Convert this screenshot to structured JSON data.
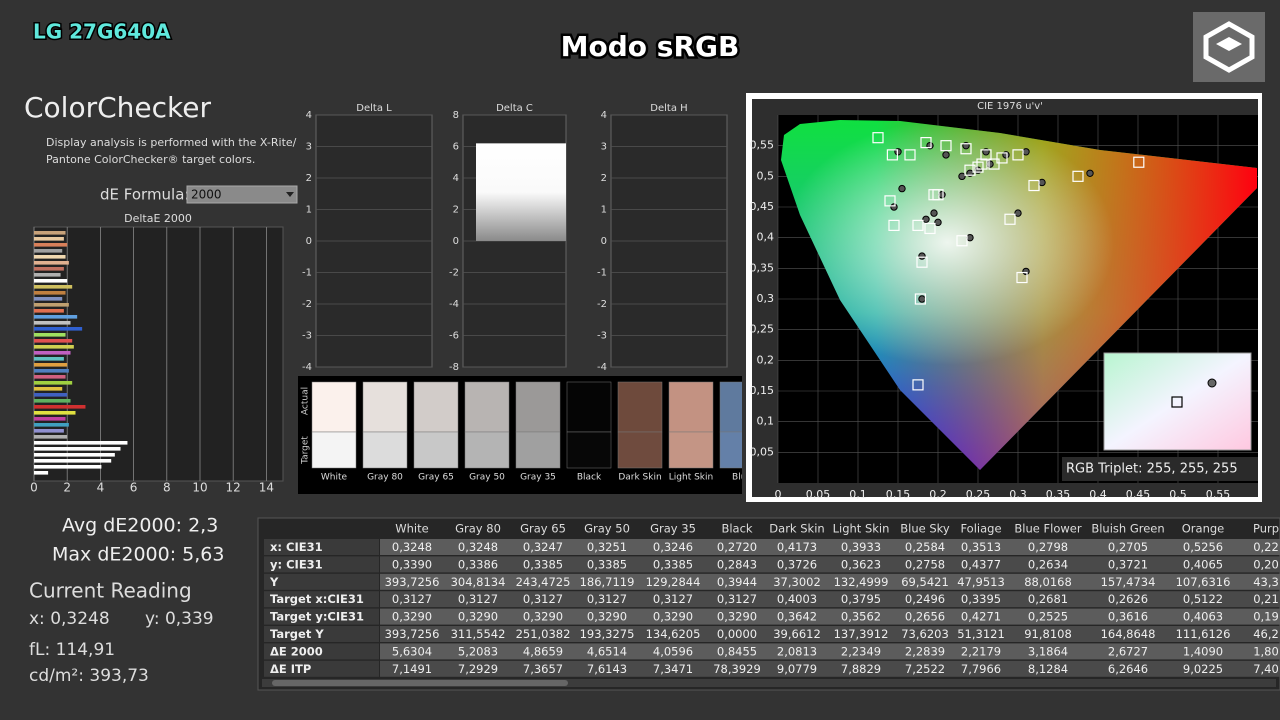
{
  "header": {
    "device": "LG 27G640A",
    "title": "Modo sRGB"
  },
  "panel": {
    "title": "ColorChecker",
    "description_1": "Display analysis is performed with the X-Rite/",
    "description_2": "Pantone ColorChecker® target colors.",
    "formula_label": "dE Formula:",
    "formula": "2000"
  },
  "deltae_chart": {
    "title": "DeltaE 2000",
    "xlim": [
      0,
      15
    ],
    "xticks": [
      0,
      2,
      4,
      6,
      8,
      10,
      12,
      14
    ],
    "values": [
      1.9,
      1.8,
      2.0,
      1.7,
      1.9,
      2.1,
      1.8,
      1.6,
      2.0,
      2.3,
      1.9,
      1.7,
      2.1,
      1.8,
      2.6,
      2.2,
      2.9,
      1.9,
      2.3,
      2.4,
      2.2,
      1.8,
      2.0,
      2.1,
      1.9,
      2.3,
      1.7,
      2.0,
      2.2,
      3.1,
      2.5,
      1.9,
      2.1,
      1.8,
      2.0,
      5.63,
      5.21,
      4.87,
      4.65,
      4.06,
      0.85
    ],
    "colors": [
      "#c8a27a",
      "#e8c9a0",
      "#d9805a",
      "#a0a0a0",
      "#f0d8b0",
      "#e0b090",
      "#c07060",
      "#b0b0b0",
      "#ffffff",
      "#d0c060",
      "#c08040",
      "#8090c0",
      "#c0a070",
      "#e07050",
      "#60a0e0",
      "#c0c0c0",
      "#3060d0",
      "#a0e060",
      "#e05050",
      "#d0d050",
      "#c060c0",
      "#60c0c0",
      "#e0a040",
      "#5080c0",
      "#d06080",
      "#a0d040",
      "#e0c040",
      "#4060c0",
      "#60b060",
      "#d03030",
      "#e0e040",
      "#c040a0",
      "#40a0c0",
      "#9090d0",
      "#b0b0b0",
      "#ffffff",
      "#ffffff",
      "#ffffff",
      "#ffffff",
      "#ffffff",
      "#ffffff"
    ]
  },
  "delta_charts": [
    {
      "title": "Delta L",
      "ylim": [
        -4,
        4
      ],
      "yticks": [
        -4,
        -3,
        -2,
        -1,
        0,
        1,
        2,
        3,
        4
      ]
    },
    {
      "title": "Delta C",
      "ylim": [
        -8,
        8
      ],
      "yticks": [
        -8,
        -6,
        -4,
        -2,
        0,
        2,
        4,
        6,
        8
      ],
      "value": 6.2
    },
    {
      "title": "Delta H",
      "ylim": [
        -4,
        4
      ],
      "yticks": [
        -4,
        -3,
        -2,
        -1,
        0,
        1,
        2,
        3,
        4
      ]
    }
  ],
  "swatches": {
    "actual_label": "Actual",
    "target_label": "Target",
    "items": [
      {
        "name": "White",
        "actual": "#fbf1ec",
        "target": "#f4f4f4"
      },
      {
        "name": "Gray 80",
        "actual": "#e6e0dc",
        "target": "#dcdcdc"
      },
      {
        "name": "Gray 65",
        "actual": "#d2ccc9",
        "target": "#c8c8c8"
      },
      {
        "name": "Gray 50",
        "actual": "#b8b4b2",
        "target": "#b4b4b4"
      },
      {
        "name": "Gray 35",
        "actual": "#9b9998",
        "target": "#a0a0a0"
      },
      {
        "name": "Black",
        "actual": "#050505",
        "target": "#070707"
      },
      {
        "name": "Dark Skin",
        "actual": "#6e4a3c",
        "target": "#6f4b3e"
      },
      {
        "name": "Light Skin",
        "actual": "#c39282",
        "target": "#c49585"
      },
      {
        "name": "Blue",
        "actual": "#5f7a9e",
        "target": "#6480a8"
      }
    ]
  },
  "cie_chart": {
    "title": "CIE 1976 u'v'",
    "xlim": [
      0,
      0.6
    ],
    "ylim": [
      0,
      0.6
    ],
    "xticks": [
      0,
      {
        "value": 0.05,
        "label": "0,05"
      },
      {
        "value": 0.1,
        "label": "0,1"
      },
      {
        "value": 0.15,
        "label": "0,15"
      },
      {
        "value": 0.2,
        "label": "0,2"
      },
      {
        "value": 0.25,
        "label": "0,25"
      },
      {
        "value": 0.3,
        "label": "0,3"
      },
      {
        "value": 0.35,
        "label": "0,35"
      },
      {
        "value": 0.4,
        "label": "0,4"
      },
      {
        "value": 0.45,
        "label": "0,45"
      },
      {
        "value": 0.5,
        "label": "0,5"
      },
      {
        "value": 0.55,
        "label": "0,55"
      }
    ],
    "yticks": [
      {
        "value": 0.05,
        "label": "0,05"
      },
      {
        "value": 0.1,
        "label": "0,1"
      },
      {
        "value": 0.15,
        "label": "0,15"
      },
      {
        "value": 0.2,
        "label": "0,2"
      },
      {
        "value": 0.25,
        "label": "0,25"
      },
      {
        "value": 0.3,
        "label": "0,3"
      },
      {
        "value": 0.35,
        "label": "0,35"
      },
      {
        "value": 0.4,
        "label": "0,4"
      },
      {
        "value": 0.45,
        "label": "0,45"
      },
      {
        "value": 0.5,
        "label": "0,5"
      },
      {
        "value": 0.55,
        "label": "0,55"
      }
    ],
    "targets": {
      "u": [
        0.125,
        0.143,
        0.165,
        0.185,
        0.21,
        0.235,
        0.26,
        0.28,
        0.3,
        0.24,
        0.25,
        0.255,
        0.27,
        0.2,
        0.14,
        0.145,
        0.175,
        0.19,
        0.32,
        0.375,
        0.451,
        0.29,
        0.23,
        0.305,
        0.18,
        0.178,
        0.175,
        0.195
      ],
      "v": [
        0.563,
        0.535,
        0.535,
        0.555,
        0.55,
        0.545,
        0.535,
        0.53,
        0.535,
        0.51,
        0.515,
        0.52,
        0.52,
        0.47,
        0.46,
        0.42,
        0.42,
        0.415,
        0.485,
        0.5,
        0.523,
        0.43,
        0.395,
        0.335,
        0.36,
        0.3,
        0.16,
        0.47
      ]
    },
    "measured": {
      "u": [
        0.15,
        0.19,
        0.21,
        0.235,
        0.26,
        0.285,
        0.31,
        0.265,
        0.25,
        0.24,
        0.23,
        0.205,
        0.195,
        0.2,
        0.185,
        0.155,
        0.145,
        0.33,
        0.39,
        0.3,
        0.24,
        0.31,
        0.18,
        0.18
      ],
      "v": [
        0.54,
        0.55,
        0.535,
        0.55,
        0.54,
        0.535,
        0.54,
        0.52,
        0.51,
        0.505,
        0.5,
        0.47,
        0.44,
        0.425,
        0.43,
        0.48,
        0.45,
        0.49,
        0.505,
        0.44,
        0.4,
        0.345,
        0.37,
        0.3
      ]
    },
    "inset_label": "RGB Triplet: 255, 255, 255"
  },
  "stats": {
    "avg": "Avg dE2000: 2,3",
    "max": "Max dE2000: 5,63",
    "current_title": "Current Reading",
    "x": "x: 0,3248",
    "y": "y: 0,339",
    "fl": "fL: 114,91",
    "cd": "cd/m²: 393,73"
  },
  "table": {
    "columns": [
      "White",
      "Gray 80",
      "Gray 65",
      "Gray 50",
      "Gray 35",
      "Black",
      "Dark Skin",
      "Light Skin",
      "Blue Sky",
      "Foliage",
      "Blue Flower",
      "Bluish Green",
      "Orange",
      "Purp"
    ],
    "rows": [
      {
        "label": "x: CIE31",
        "cells": [
          "0,3248",
          "0,3248",
          "0,3247",
          "0,3251",
          "0,3246",
          "0,2720",
          "0,4173",
          "0,3933",
          "0,2584",
          "0,3513",
          "0,2798",
          "0,2705",
          "0,5256",
          "0,22"
        ]
      },
      {
        "label": "y: CIE31",
        "cells": [
          "0,3390",
          "0,3386",
          "0,3385",
          "0,3385",
          "0,3385",
          "0,2843",
          "0,3726",
          "0,3623",
          "0,2758",
          "0,4377",
          "0,2634",
          "0,3721",
          "0,4065",
          "0,20"
        ]
      },
      {
        "label": "Y",
        "cells": [
          "393,7256",
          "304,8134",
          "243,4725",
          "186,7119",
          "129,2844",
          "0,3944",
          "37,3002",
          "132,4999",
          "69,5421",
          "47,9513",
          "88,0168",
          "157,4734",
          "107,6316",
          "43,3"
        ]
      },
      {
        "label": "Target x:CIE31",
        "cells": [
          "0,3127",
          "0,3127",
          "0,3127",
          "0,3127",
          "0,3127",
          "0,3127",
          "0,4003",
          "0,3795",
          "0,2496",
          "0,3395",
          "0,2681",
          "0,2626",
          "0,5122",
          "0,21"
        ]
      },
      {
        "label": "Target y:CIE31",
        "cells": [
          "0,3290",
          "0,3290",
          "0,3290",
          "0,3290",
          "0,3290",
          "0,3290",
          "0,3642",
          "0,3562",
          "0,2656",
          "0,4271",
          "0,2525",
          "0,3616",
          "0,4063",
          "0,19"
        ]
      },
      {
        "label": "Target Y",
        "cells": [
          "393,7256",
          "311,5542",
          "251,0382",
          "193,3275",
          "134,6205",
          "0,0000",
          "39,6612",
          "137,3912",
          "73,6203",
          "51,3121",
          "91,8108",
          "164,8648",
          "111,6126",
          "46,2"
        ]
      },
      {
        "label": "ΔE 2000",
        "cells": [
          "5,6304",
          "5,2083",
          "4,8659",
          "4,6514",
          "4,0596",
          "0,8455",
          "2,0813",
          "2,2349",
          "2,2839",
          "2,2179",
          "3,1864",
          "2,6727",
          "1,4090",
          "1,80"
        ]
      },
      {
        "label": "ΔE ITP",
        "cells": [
          "7,1491",
          "7,2929",
          "7,3657",
          "7,6143",
          "7,3471",
          "78,3929",
          "9,0779",
          "7,8829",
          "7,2522",
          "7,7966",
          "8,1284",
          "6,2646",
          "9,0225",
          "7,40"
        ]
      }
    ]
  }
}
